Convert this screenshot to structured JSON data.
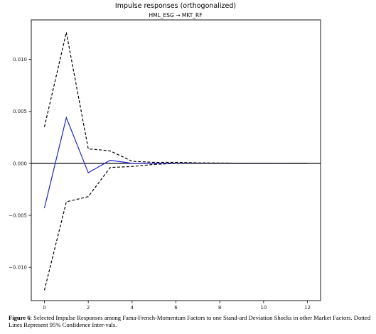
{
  "chart_data": {
    "type": "line",
    "title": "Impulse responses (orthogonalized)",
    "subtitle": "HML_ESG → MKT_RF",
    "x": [
      0,
      1,
      2,
      3,
      4,
      5,
      6,
      7,
      8,
      9,
      10,
      11,
      12
    ],
    "xticks": [
      0,
      2,
      4,
      6,
      8,
      10,
      12
    ],
    "yticks": [
      -0.01,
      -0.005,
      0.0,
      0.005,
      0.01
    ],
    "ytick_labels": [
      "−0.010",
      "−0.005",
      "0.000",
      "0.005",
      "0.010"
    ],
    "xlim": [
      -0.6,
      12.6
    ],
    "ylim": [
      -0.0132,
      0.0138
    ],
    "zero_line": 0,
    "grid": false,
    "series": [
      {
        "role": "response",
        "style": "solid",
        "color": "#2222cc",
        "values": [
          -0.0043,
          0.0044,
          -0.0009,
          0.0003,
          0.0,
          0.0,
          0.0,
          0.0,
          0.0,
          0.0,
          0.0,
          0.0,
          0.0
        ]
      },
      {
        "role": "upper-band",
        "style": "dashed",
        "color": "#000000",
        "values": [
          0.0035,
          0.0126,
          0.0014,
          0.0012,
          0.0002,
          0.0001,
          0.0001,
          5e-05,
          3e-05,
          2e-05,
          1e-05,
          0.0,
          0.0
        ]
      },
      {
        "role": "lower-band",
        "style": "dashed",
        "color": "#000000",
        "values": [
          -0.0122,
          -0.0037,
          -0.0032,
          -0.0004,
          -0.0003,
          -0.0001,
          0.0,
          0.0,
          0.0,
          0.0,
          0.0,
          0.0,
          0.0
        ]
      }
    ]
  },
  "caption": {
    "lead": "Figure 6",
    "text": ": Selected Impulse Responses among Fama-French-Momentum Factors to one Stand-ard Deviation Shocks in other Market Factors. Dotted Lines Represent 95% Confidence Inter-vals."
  }
}
